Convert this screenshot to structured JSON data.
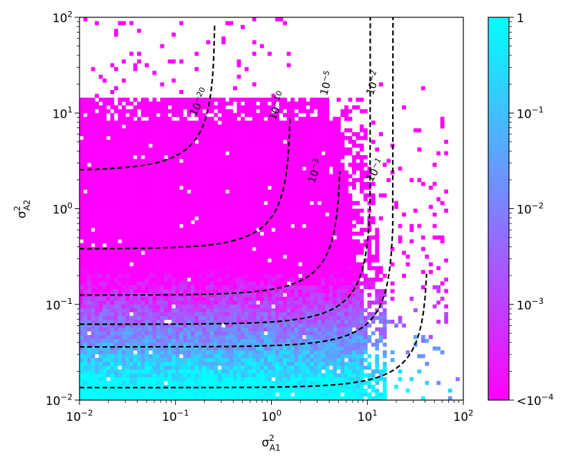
{
  "chart_data": {
    "type": "heatmap",
    "xscale": "log",
    "yscale": "log",
    "xlim": [
      0.01,
      100
    ],
    "ylim": [
      0.01,
      100
    ],
    "xlabel": {
      "base": "σ",
      "sup": "2",
      "sub": "A1"
    },
    "ylabel": {
      "base": "σ",
      "sup": "2",
      "sub": "A2"
    },
    "x_ticks": [
      {
        "value": 0.01,
        "base": "10",
        "exp": "−2"
      },
      {
        "value": 0.1,
        "base": "10",
        "exp": "−1"
      },
      {
        "value": 1,
        "base": "10",
        "exp": "0"
      },
      {
        "value": 10,
        "base": "10",
        "exp": "1"
      },
      {
        "value": 100,
        "base": "10",
        "exp": "2"
      }
    ],
    "y_ticks": [
      {
        "value": 0.01,
        "base": "10",
        "exp": "−2"
      },
      {
        "value": 0.1,
        "base": "10",
        "exp": "−1"
      },
      {
        "value": 1,
        "base": "10",
        "exp": "0"
      },
      {
        "value": 10,
        "base": "10",
        "exp": "1"
      },
      {
        "value": 100,
        "base": "10",
        "exp": "2"
      }
    ],
    "colorbar": {
      "scale": "log",
      "range": [
        0.0001,
        1
      ],
      "colors": [
        "#ff00ff",
        "#00ffff"
      ],
      "ticks": [
        {
          "value": 1,
          "text": "1"
        },
        {
          "value": 0.1,
          "base": "10",
          "exp": "−1"
        },
        {
          "value": 0.01,
          "base": "10",
          "exp": "−2"
        },
        {
          "value": 0.001,
          "base": "10",
          "exp": "−3"
        },
        {
          "value": 0.0001,
          "text": "<10",
          "exp": "−4"
        }
      ]
    },
    "contours": [
      {
        "level": 1e-20,
        "base": "10",
        "exp": "−20",
        "y_at_xmin": 2.5,
        "x_asymptote": 0.26,
        "label_at": [
          0.19,
          12.5
        ],
        "label_angle": -62
      },
      {
        "level": 1e-10,
        "base": "10",
        "exp": "−10",
        "y_at_xmin": 0.38,
        "x_asymptote": 1.6,
        "label_at": [
          1.25,
          11.5
        ],
        "label_angle": -68
      },
      {
        "level": 0.001,
        "base": "10",
        "exp": "−3",
        "y_at_xmin": 0.125,
        "x_asymptote": 5.3,
        "label_at": [
          3.1,
          2.4
        ],
        "label_angle": -70
      },
      {
        "level": 1e-05,
        "base": "10",
        "exp": "−5",
        "y_at_xmin": 0.062,
        "x_asymptote": 11,
        "label_at": [
          4.1,
          20
        ],
        "label_angle": -74
      },
      {
        "level": 0.01,
        "base": "10",
        "exp": "−2",
        "y_at_xmin": 0.036,
        "x_asymptote": 19,
        "label_at": [
          12.5,
          20
        ],
        "label_angle": -72
      },
      {
        "level": 0.1,
        "base": "10",
        "exp": "−1",
        "y_at_xmin": 0.0135,
        "x_asymptote": 43,
        "label_at": [
          13,
          2.4
        ],
        "label_angle": -58
      }
    ]
  }
}
